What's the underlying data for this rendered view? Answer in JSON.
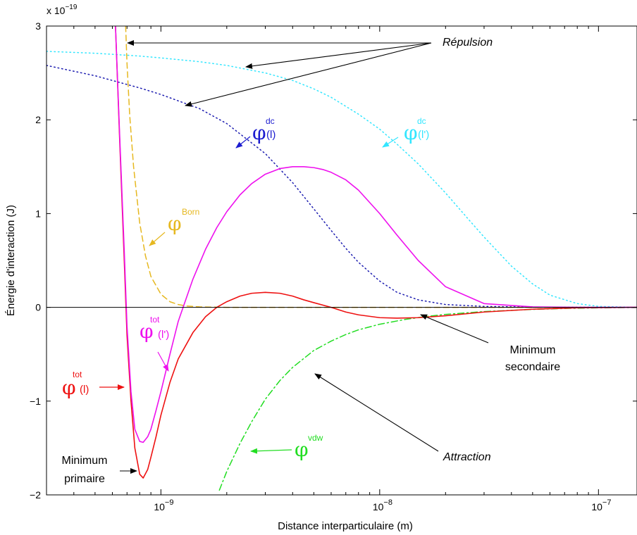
{
  "chart_data": {
    "type": "line",
    "title": "",
    "xlabel": "Distance interparticulaire (m)",
    "ylabel": "Énergie d'interaction (J)",
    "xscale": "log",
    "xlim": [
      3e-10,
      1.5e-07
    ],
    "ylim": [
      -2,
      3
    ],
    "y_exponent_label": {
      "base": "x 10",
      "exp": "−19"
    },
    "grid": false,
    "x_ticks": [
      {
        "value": 1e-09,
        "base": "10",
        "exp": "−9"
      },
      {
        "value": 1e-08,
        "base": "10",
        "exp": "−8"
      },
      {
        "value": 1e-07,
        "base": "10",
        "exp": "−7"
      }
    ],
    "y_ticks": [
      {
        "value": -2,
        "label": "−2"
      },
      {
        "value": -1,
        "label": "−1"
      },
      {
        "value": 0,
        "label": "0"
      },
      {
        "value": 1,
        "label": "1"
      },
      {
        "value": 2,
        "label": "2"
      },
      {
        "value": 3,
        "label": "3"
      }
    ],
    "series": [
      {
        "key": "dc_l",
        "color": "#1c1cb0",
        "style": "dotted",
        "x": [
          3e-10,
          5e-10,
          8e-10,
          1e-09,
          1.5e-09,
          2e-09,
          3e-09,
          4e-09,
          5e-09,
          6e-09,
          7e-09,
          8e-09,
          1e-08,
          1.2e-08,
          1.5e-08,
          2e-08,
          3e-08,
          5e-08,
          1e-07,
          1.5e-07
        ],
        "y": [
          2.58,
          2.47,
          2.34,
          2.27,
          2.12,
          1.96,
          1.64,
          1.33,
          1.05,
          0.82,
          0.63,
          0.48,
          0.28,
          0.16,
          0.08,
          0.03,
          0.01,
          0.002,
          0.0,
          0.0
        ]
      },
      {
        "key": "dc_lp",
        "color": "#33e6ff",
        "style": "dotted",
        "x": [
          3e-10,
          5e-10,
          8e-10,
          1e-09,
          1.5e-09,
          2e-09,
          3e-09,
          4e-09,
          5e-09,
          6e-09,
          8e-09,
          1e-08,
          1.2e-08,
          1.5e-08,
          2e-08,
          2.5e-08,
          3e-08,
          4e-08,
          5e-08,
          6e-08,
          8e-08,
          1e-07,
          1.5e-07
        ],
        "y": [
          2.73,
          2.71,
          2.68,
          2.66,
          2.62,
          2.58,
          2.5,
          2.42,
          2.33,
          2.24,
          2.06,
          1.9,
          1.74,
          1.53,
          1.22,
          0.96,
          0.75,
          0.44,
          0.25,
          0.13,
          0.04,
          0.01,
          0.0
        ]
      },
      {
        "key": "born",
        "color": "#e6b820",
        "style": "dashed",
        "x": [
          6.9e-10,
          7e-10,
          7.2e-10,
          7.5e-10,
          8e-10,
          8.5e-10,
          9e-10,
          1e-09,
          1.1e-09,
          1.2e-09,
          1.3e-09,
          1.5e-09,
          2e-09,
          3e-09,
          5e-09,
          1e-08,
          2e-08,
          5e-08,
          1e-07,
          1.5e-07
        ],
        "y": [
          3.0,
          2.6,
          2.05,
          1.5,
          0.9,
          0.55,
          0.33,
          0.14,
          0.06,
          0.03,
          0.015,
          0.005,
          0.0,
          0.0,
          0.0,
          0.0,
          0.0,
          0.0,
          0.0,
          0.0
        ]
      },
      {
        "key": "vdw",
        "color": "#22dd22",
        "style": "dashdot",
        "x": [
          1.85e-09,
          2e-09,
          2.3e-09,
          2.6e-09,
          3e-09,
          3.5e-09,
          4e-09,
          5e-09,
          6e-09,
          7e-09,
          8e-09,
          1e-08,
          1.3e-08,
          1.6e-08,
          2e-08,
          3e-08,
          5e-08,
          7e-08,
          1e-07,
          1.5e-07
        ],
        "y": [
          -1.95,
          -1.75,
          -1.45,
          -1.22,
          -0.98,
          -0.78,
          -0.64,
          -0.46,
          -0.36,
          -0.29,
          -0.24,
          -0.18,
          -0.13,
          -0.1,
          -0.075,
          -0.045,
          -0.022,
          -0.012,
          -0.006,
          -0.002
        ]
      },
      {
        "key": "tot_l",
        "color": "#ee1111",
        "style": "solid",
        "x": [
          6.2e-10,
          6.5e-10,
          6.8e-10,
          7e-10,
          7.3e-10,
          7.6e-10,
          8e-10,
          8.3e-10,
          8.7e-10,
          9e-10,
          9.5e-10,
          1e-09,
          1.1e-09,
          1.2e-09,
          1.4e-09,
          1.6e-09,
          1.8e-09,
          2e-09,
          2.3e-09,
          2.6e-09,
          3e-09,
          3.5e-09,
          4e-09,
          4.5e-09,
          5e-09,
          6e-09,
          7e-09,
          8e-09,
          1e-08,
          1.2e-08,
          1.5e-08,
          2e-08,
          3e-08,
          5e-08,
          8e-08,
          1.5e-07
        ],
        "y": [
          3.0,
          1.7,
          0.5,
          -0.3,
          -1.0,
          -1.5,
          -1.78,
          -1.82,
          -1.73,
          -1.6,
          -1.38,
          -1.15,
          -0.8,
          -0.55,
          -0.27,
          -0.1,
          0.0,
          0.06,
          0.12,
          0.15,
          0.16,
          0.15,
          0.12,
          0.08,
          0.05,
          0.0,
          -0.05,
          -0.08,
          -0.11,
          -0.115,
          -0.11,
          -0.09,
          -0.05,
          -0.02,
          -0.005,
          0.0
        ]
      },
      {
        "key": "tot_lp",
        "color": "#ee11ee",
        "style": "solid",
        "x": [
          6.2e-10,
          6.5e-10,
          6.8e-10,
          7e-10,
          7.3e-10,
          7.6e-10,
          8e-10,
          8.3e-10,
          8.7e-10,
          9e-10,
          9.5e-10,
          1e-09,
          1.1e-09,
          1.2e-09,
          1.4e-09,
          1.6e-09,
          1.8e-09,
          2e-09,
          2.3e-09,
          2.6e-09,
          3e-09,
          3.5e-09,
          4e-09,
          4.5e-09,
          5e-09,
          5.5e-09,
          6e-09,
          7e-09,
          8e-09,
          1e-08,
          1.2e-08,
          1.5e-08,
          2e-08,
          3e-08,
          5e-08,
          8e-08,
          1.2e-07,
          1.5e-07
        ],
        "y": [
          3.0,
          1.75,
          0.6,
          -0.2,
          -0.9,
          -1.3,
          -1.43,
          -1.44,
          -1.38,
          -1.3,
          -1.1,
          -0.9,
          -0.5,
          -0.15,
          0.3,
          0.62,
          0.85,
          1.02,
          1.2,
          1.32,
          1.42,
          1.48,
          1.5,
          1.5,
          1.49,
          1.47,
          1.44,
          1.36,
          1.25,
          1.0,
          0.77,
          0.5,
          0.22,
          0.04,
          0.005,
          0.0,
          0.0,
          0.0
        ]
      }
    ],
    "labels": {
      "dc_l": {
        "sup": "dc",
        "sub": "(l)",
        "color": "#1c1cd0"
      },
      "dc_lp": {
        "sup": "dc",
        "sub": "(l')",
        "color": "#33e6ff"
      },
      "born": {
        "sup": "Born",
        "sub": "",
        "color": "#e6b820"
      },
      "tot_lp": {
        "sup": "tot",
        "sub": "(l')",
        "color": "#ee11ee"
      },
      "tot_l": {
        "sup": "tot",
        "sub": "(l)",
        "color": "#ee1111"
      },
      "vdw": {
        "sup": "vdw",
        "sub": "",
        "color": "#22dd22"
      }
    },
    "phi": "φ",
    "annotations": {
      "repulsion": "Répulsion",
      "attraction": "Attraction",
      "min_second_1": "Minimum",
      "min_second_2": "secondaire",
      "min_prim_1": "Minimum",
      "min_prim_2": "primaire"
    }
  }
}
